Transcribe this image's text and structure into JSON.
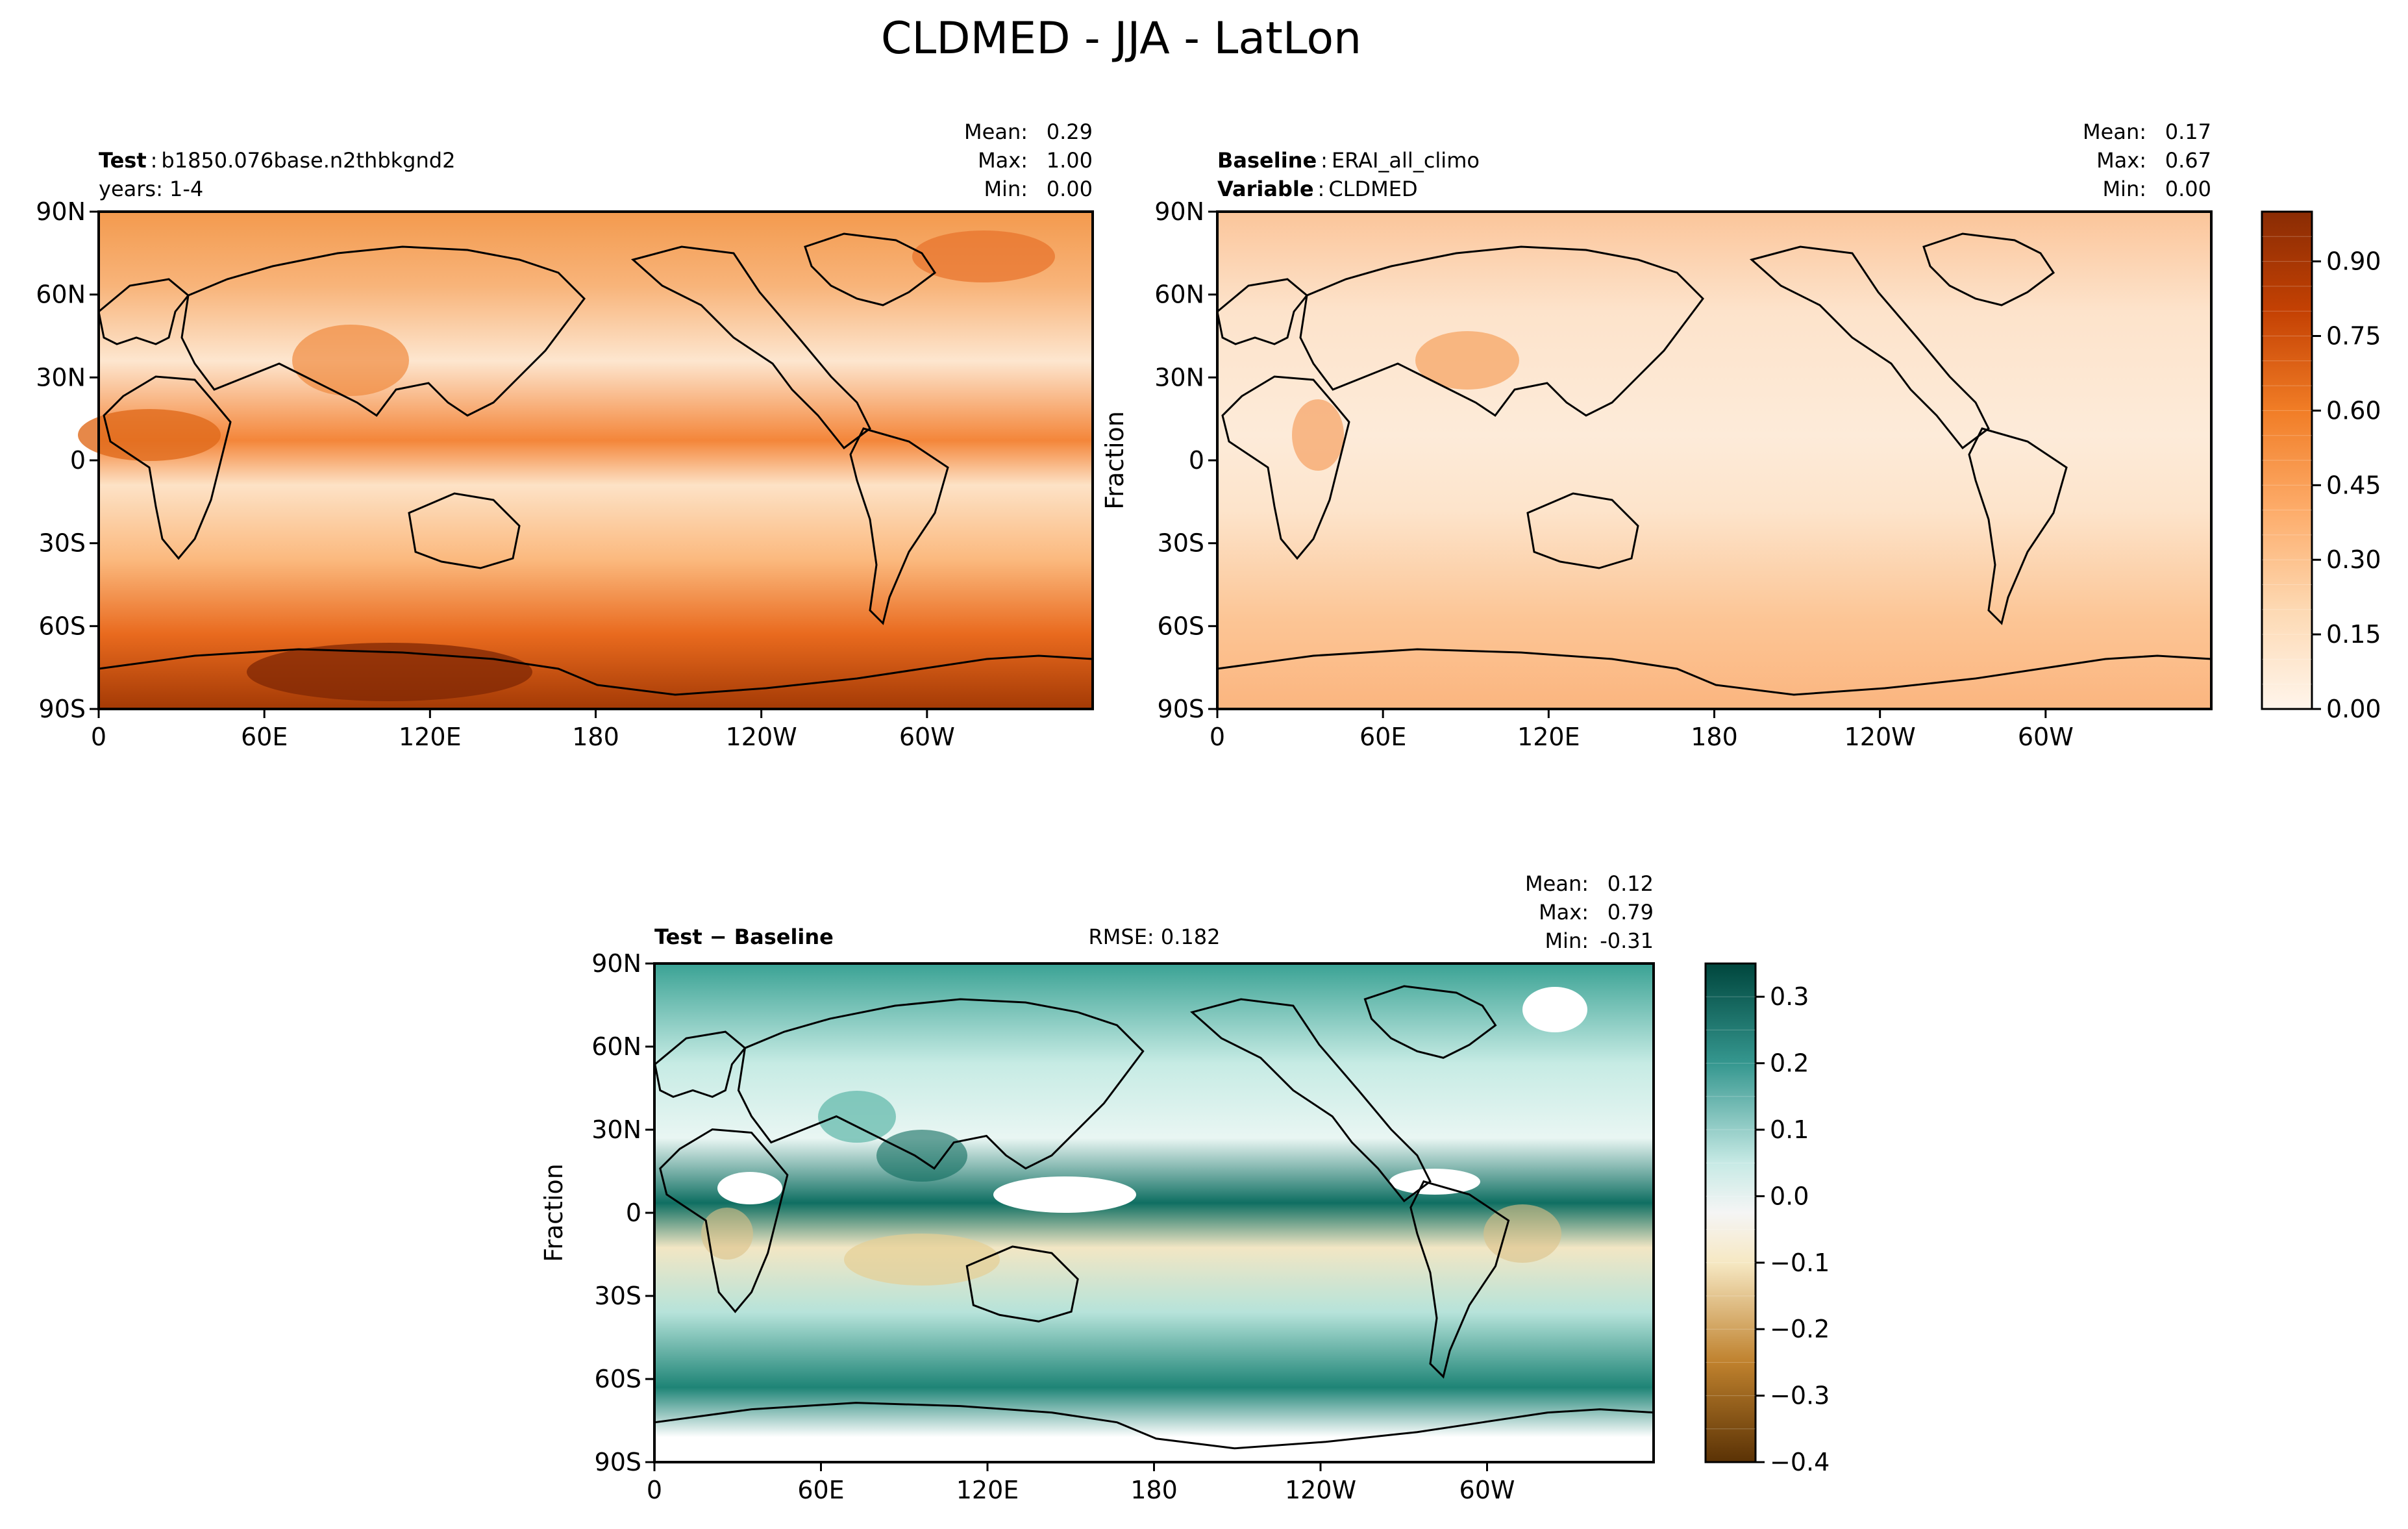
{
  "figure": {
    "title": "CLDMED - JJA - LatLon",
    "background": "#ffffff"
  },
  "chart_data": [
    {
      "type": "heatmap",
      "panel": "test",
      "ylabel": "",
      "info": {
        "line1_bold": "Test",
        "line1_sep": ":",
        "line1_text": "b1850.076base.n2thbkgnd2",
        "line2_text": "years: 1-4"
      },
      "stats": [
        {
          "label": "Mean:",
          "value": "0.29"
        },
        {
          "label": "Max:",
          "value": "1.00"
        },
        {
          "label": "Min:",
          "value": "0.00"
        }
      ],
      "xticks": [
        "0",
        "60E",
        "120E",
        "180",
        "120W",
        "60W"
      ],
      "xtick_values": [
        0,
        60,
        120,
        180,
        240,
        300
      ],
      "xlim": [
        0,
        360
      ],
      "yticks": [
        "90N",
        "60N",
        "30N",
        "0",
        "30S",
        "60S",
        "90S"
      ],
      "ytick_values": [
        90,
        60,
        30,
        0,
        -30,
        -60,
        -90
      ],
      "ylim": [
        -90,
        90
      ],
      "colormap": "Oranges",
      "clim": [
        0,
        1
      ]
    },
    {
      "type": "heatmap",
      "panel": "baseline",
      "ylabel": "Fraction",
      "info": {
        "line1_bold": "Baseline",
        "line1_sep": ":",
        "line1_text": "ERAI_all_climo",
        "line2_bold": "Variable",
        "line2_sep": ":",
        "line2_text": "CLDMED"
      },
      "stats": [
        {
          "label": "Mean:",
          "value": "0.17"
        },
        {
          "label": "Max:",
          "value": "0.67"
        },
        {
          "label": "Min:",
          "value": "0.00"
        }
      ],
      "xticks": [
        "0",
        "60E",
        "120E",
        "180",
        "120W",
        "60W"
      ],
      "xtick_values": [
        0,
        60,
        120,
        180,
        240,
        300
      ],
      "xlim": [
        0,
        360
      ],
      "yticks": [
        "90N",
        "60N",
        "30N",
        "0",
        "30S",
        "60S",
        "90S"
      ],
      "ytick_values": [
        90,
        60,
        30,
        0,
        -30,
        -60,
        -90
      ],
      "ylim": [
        -90,
        90
      ],
      "colormap": "Oranges",
      "colorbar": {
        "ticks": [
          "0.00",
          "0.15",
          "0.30",
          "0.45",
          "0.60",
          "0.75",
          "0.90"
        ],
        "tick_values": [
          0,
          0.15,
          0.3,
          0.45,
          0.6,
          0.75,
          0.9
        ],
        "range": [
          0,
          1
        ],
        "levels": 20
      }
    },
    {
      "type": "heatmap",
      "panel": "difference",
      "ylabel": "Fraction",
      "info": {
        "title_bold": "Test − Baseline",
        "rmse": "RMSE: 0.182"
      },
      "stats": [
        {
          "label": "Mean:",
          "value": "0.12"
        },
        {
          "label": "Max:",
          "value": "0.79"
        },
        {
          "label": "Min:",
          "value": "-0.31"
        }
      ],
      "xticks": [
        "0",
        "60E",
        "120E",
        "180",
        "120W",
        "60W"
      ],
      "xtick_values": [
        0,
        60,
        120,
        180,
        240,
        300
      ],
      "xlim": [
        0,
        360
      ],
      "yticks": [
        "90N",
        "60N",
        "30N",
        "0",
        "30S",
        "60S",
        "90S"
      ],
      "ytick_values": [
        90,
        60,
        30,
        0,
        -30,
        -60,
        -90
      ],
      "ylim": [
        -90,
        90
      ],
      "colormap": "BrBG",
      "colorbar": {
        "ticks": [
          "0.3",
          "0.2",
          "0.1",
          "0.0",
          "−0.1",
          "−0.2",
          "−0.3",
          "−0.4"
        ],
        "tick_values": [
          0.3,
          0.2,
          0.1,
          0.0,
          -0.1,
          -0.2,
          -0.3,
          -0.4
        ],
        "range": [
          -0.4,
          0.35
        ],
        "levels": 15
      }
    }
  ]
}
